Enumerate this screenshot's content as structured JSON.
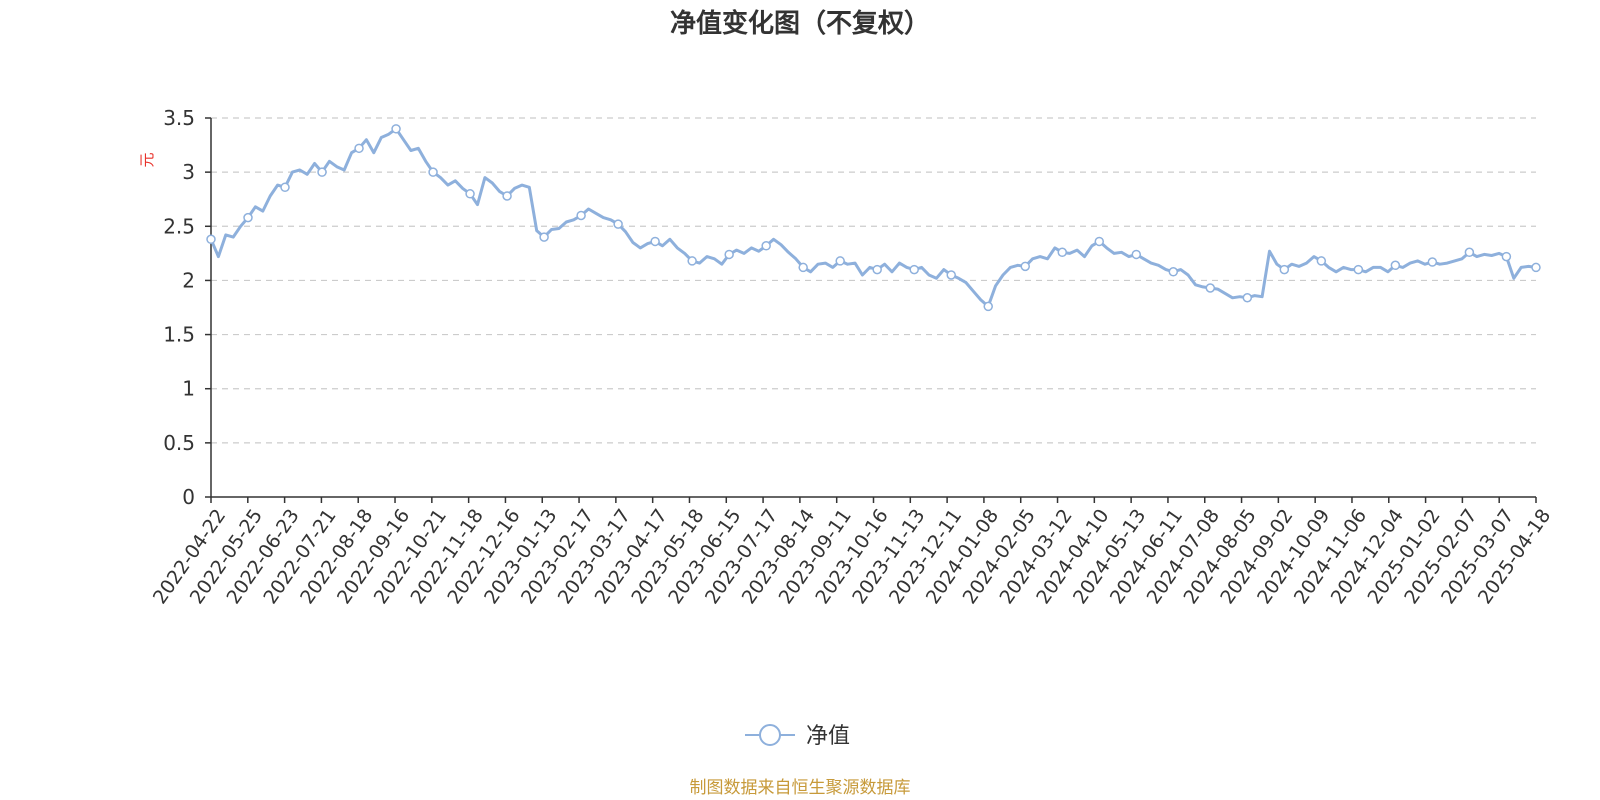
{
  "chart_data": {
    "type": "line",
    "title": "净值变化图（不复权）",
    "yunit": "元",
    "ylim": [
      0,
      3.5
    ],
    "yticks": [
      "0",
      "0.5",
      "1",
      "1.5",
      "2",
      "2.5",
      "3",
      "3.5"
    ],
    "grid": true,
    "legend_position": "bottom-center",
    "x_tick_labels": [
      "2022-04-22",
      "2022-05-25",
      "2022-06-23",
      "2022-07-21",
      "2022-08-18",
      "2022-09-16",
      "2022-10-21",
      "2022-11-18",
      "2022-12-16",
      "2023-01-13",
      "2023-02-17",
      "2023-03-17",
      "2023-04-17",
      "2023-05-18",
      "2023-06-15",
      "2023-07-17",
      "2023-08-14",
      "2023-09-11",
      "2023-10-16",
      "2023-11-13",
      "2023-12-11",
      "2024-01-08",
      "2024-02-05",
      "2024-03-12",
      "2024-04-10",
      "2024-05-13",
      "2024-06-11",
      "2024-07-08",
      "2024-08-05",
      "2024-09-02",
      "2024-10-09",
      "2024-11-06",
      "2024-12-04",
      "2025-01-02",
      "2025-02-07",
      "2025-03-07",
      "2025-04-18"
    ],
    "series": [
      {
        "name": "净值",
        "color": "#8eb0dc",
        "values": [
          2.38,
          2.22,
          2.42,
          2.4,
          2.5,
          2.58,
          2.68,
          2.64,
          2.78,
          2.88,
          2.86,
          3.0,
          3.02,
          2.98,
          3.08,
          3.0,
          3.1,
          3.05,
          3.02,
          3.18,
          3.22,
          3.3,
          3.18,
          3.32,
          3.35,
          3.4,
          3.3,
          3.2,
          3.22,
          3.1,
          3.0,
          2.95,
          2.88,
          2.92,
          2.85,
          2.8,
          2.7,
          2.95,
          2.9,
          2.82,
          2.78,
          2.85,
          2.88,
          2.86,
          2.46,
          2.4,
          2.47,
          2.48,
          2.54,
          2.56,
          2.6,
          2.66,
          2.62,
          2.58,
          2.56,
          2.52,
          2.45,
          2.35,
          2.3,
          2.34,
          2.36,
          2.32,
          2.38,
          2.3,
          2.25,
          2.18,
          2.16,
          2.22,
          2.2,
          2.15,
          2.24,
          2.28,
          2.25,
          2.3,
          2.27,
          2.32,
          2.38,
          2.33,
          2.26,
          2.2,
          2.12,
          2.08,
          2.15,
          2.16,
          2.12,
          2.18,
          2.15,
          2.16,
          2.05,
          2.12,
          2.1,
          2.15,
          2.08,
          2.16,
          2.12,
          2.1,
          2.12,
          2.05,
          2.02,
          2.1,
          2.05,
          2.02,
          1.98,
          1.9,
          1.82,
          1.76,
          1.95,
          2.05,
          2.12,
          2.14,
          2.13,
          2.2,
          2.22,
          2.2,
          2.3,
          2.26,
          2.25,
          2.28,
          2.22,
          2.32,
          2.36,
          2.3,
          2.25,
          2.26,
          2.22,
          2.24,
          2.2,
          2.16,
          2.14,
          2.1,
          2.08,
          2.1,
          2.05,
          1.96,
          1.94,
          1.93,
          1.92,
          1.88,
          1.84,
          1.85,
          1.84,
          1.86,
          1.85,
          2.27,
          2.15,
          2.1,
          2.15,
          2.13,
          2.16,
          2.22,
          2.18,
          2.12,
          2.08,
          2.12,
          2.1,
          2.1,
          2.08,
          2.12,
          2.12,
          2.08,
          2.14,
          2.12,
          2.16,
          2.18,
          2.15,
          2.17,
          2.15,
          2.16,
          2.18,
          2.2,
          2.26,
          2.22,
          2.24,
          2.23,
          2.25,
          2.22,
          2.02,
          2.12,
          2.13,
          2.12
        ]
      }
    ]
  },
  "legend": {
    "label": "净值"
  },
  "source": "制图数据来自恒生聚源数据库"
}
